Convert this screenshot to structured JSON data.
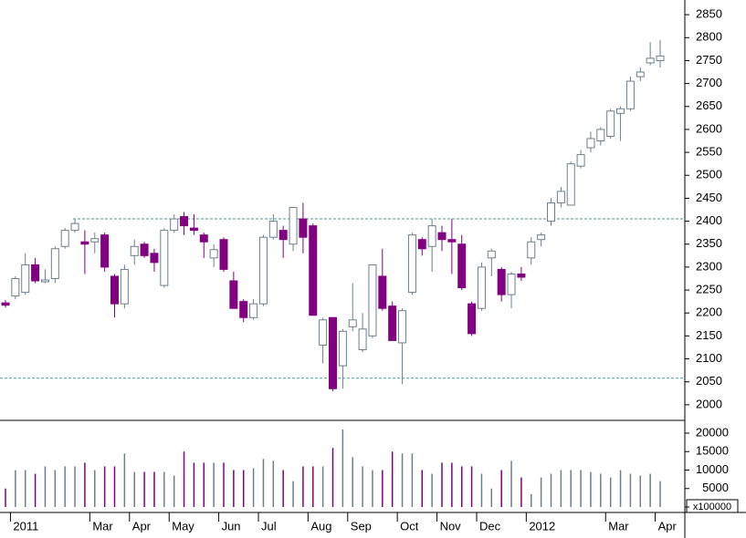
{
  "chart_data": {
    "type": "candlestick",
    "up_color": "#6b7f8c",
    "down_color": "#800080",
    "ylim": [
      1966,
      2882
    ],
    "yticks": [
      2000,
      2050,
      2100,
      2150,
      2200,
      2250,
      2300,
      2350,
      2400,
      2450,
      2500,
      2550,
      2600,
      2650,
      2700,
      2750,
      2800,
      2850
    ],
    "reference_lines": [
      2405,
      2058
    ],
    "categories": [
      null,
      "2011",
      null,
      null,
      null,
      null,
      null,
      null,
      null,
      "Mar",
      null,
      null,
      null,
      "Apr",
      null,
      null,
      null,
      "May",
      null,
      null,
      null,
      null,
      "Jun",
      null,
      null,
      null,
      "Jul",
      null,
      null,
      null,
      null,
      "Aug",
      null,
      null,
      null,
      "Sep",
      null,
      null,
      null,
      null,
      "Oct",
      null,
      null,
      null,
      "Nov",
      null,
      null,
      null,
      "Dec",
      null,
      null,
      null,
      null,
      "2012",
      null,
      null,
      null,
      null,
      null,
      null,
      null,
      "Mar",
      null,
      null,
      null,
      null,
      "Apr"
    ],
    "candles": [
      {
        "o": 2222,
        "h": 2228,
        "l": 2212,
        "c": 2217
      },
      {
        "o": 2237,
        "h": 2280,
        "l": 2230,
        "c": 2275
      },
      {
        "o": 2245,
        "h": 2330,
        "l": 2240,
        "c": 2305
      },
      {
        "o": 2305,
        "h": 2320,
        "l": 2265,
        "c": 2270
      },
      {
        "o": 2268,
        "h": 2295,
        "l": 2265,
        "c": 2272
      },
      {
        "o": 2275,
        "h": 2345,
        "l": 2265,
        "c": 2340
      },
      {
        "o": 2345,
        "h": 2385,
        "l": 2340,
        "c": 2380
      },
      {
        "o": 2380,
        "h": 2405,
        "l": 2375,
        "c": 2395
      },
      {
        "o": 2355,
        "h": 2380,
        "l": 2285,
        "c": 2350
      },
      {
        "o": 2355,
        "h": 2375,
        "l": 2330,
        "c": 2362
      },
      {
        "o": 2370,
        "h": 2375,
        "l": 2290,
        "c": 2300
      },
      {
        "o": 2280,
        "h": 2285,
        "l": 2190,
        "c": 2220
      },
      {
        "o": 2220,
        "h": 2305,
        "l": 2210,
        "c": 2295
      },
      {
        "o": 2325,
        "h": 2360,
        "l": 2305,
        "c": 2345
      },
      {
        "o": 2350,
        "h": 2355,
        "l": 2320,
        "c": 2325
      },
      {
        "o": 2330,
        "h": 2340,
        "l": 2290,
        "c": 2310
      },
      {
        "o": 2260,
        "h": 2385,
        "l": 2255,
        "c": 2380
      },
      {
        "o": 2380,
        "h": 2415,
        "l": 2375,
        "c": 2405
      },
      {
        "o": 2410,
        "h": 2420,
        "l": 2370,
        "c": 2390
      },
      {
        "o": 2385,
        "h": 2415,
        "l": 2370,
        "c": 2380
      },
      {
        "o": 2370,
        "h": 2375,
        "l": 2320,
        "c": 2355
      },
      {
        "o": 2320,
        "h": 2350,
        "l": 2300,
        "c": 2338
      },
      {
        "o": 2360,
        "h": 2365,
        "l": 2290,
        "c": 2295
      },
      {
        "o": 2270,
        "h": 2290,
        "l": 2210,
        "c": 2210
      },
      {
        "o": 2225,
        "h": 2230,
        "l": 2180,
        "c": 2190
      },
      {
        "o": 2190,
        "h": 2230,
        "l": 2185,
        "c": 2220
      },
      {
        "o": 2220,
        "h": 2370,
        "l": 2215,
        "c": 2365
      },
      {
        "o": 2365,
        "h": 2415,
        "l": 2360,
        "c": 2400
      },
      {
        "o": 2380,
        "h": 2390,
        "l": 2320,
        "c": 2360
      },
      {
        "o": 2350,
        "h": 2430,
        "l": 2335,
        "c": 2430
      },
      {
        "o": 2405,
        "h": 2440,
        "l": 2330,
        "c": 2365
      },
      {
        "o": 2390,
        "h": 2395,
        "l": 2195,
        "c": 2195
      },
      {
        "o": 2130,
        "h": 2190,
        "l": 2090,
        "c": 2185
      },
      {
        "o": 2190,
        "h": 2190,
        "l": 2030,
        "c": 2035
      },
      {
        "o": 2085,
        "h": 2165,
        "l": 2035,
        "c": 2160
      },
      {
        "o": 2170,
        "h": 2265,
        "l": 2160,
        "c": 2185
      },
      {
        "o": 2120,
        "h": 2200,
        "l": 2115,
        "c": 2165
      },
      {
        "o": 2150,
        "h": 2305,
        "l": 2145,
        "c": 2305
      },
      {
        "o": 2280,
        "h": 2340,
        "l": 2205,
        "c": 2210
      },
      {
        "o": 2215,
        "h": 2225,
        "l": 2140,
        "c": 2140
      },
      {
        "o": 2135,
        "h": 2210,
        "l": 2045,
        "c": 2205
      },
      {
        "o": 2245,
        "h": 2375,
        "l": 2240,
        "c": 2370
      },
      {
        "o": 2360,
        "h": 2365,
        "l": 2325,
        "c": 2340
      },
      {
        "o": 2345,
        "h": 2405,
        "l": 2290,
        "c": 2390
      },
      {
        "o": 2375,
        "h": 2390,
        "l": 2335,
        "c": 2360
      },
      {
        "o": 2360,
        "h": 2405,
        "l": 2285,
        "c": 2355
      },
      {
        "o": 2350,
        "h": 2370,
        "l": 2250,
        "c": 2255
      },
      {
        "o": 2220,
        "h": 2225,
        "l": 2150,
        "c": 2155
      },
      {
        "o": 2210,
        "h": 2310,
        "l": 2205,
        "c": 2300
      },
      {
        "o": 2320,
        "h": 2340,
        "l": 2280,
        "c": 2335
      },
      {
        "o": 2295,
        "h": 2300,
        "l": 2225,
        "c": 2240
      },
      {
        "o": 2240,
        "h": 2290,
        "l": 2210,
        "c": 2285
      },
      {
        "o": 2285,
        "h": 2300,
        "l": 2270,
        "c": 2278
      },
      {
        "o": 2320,
        "h": 2365,
        "l": 2305,
        "c": 2355
      },
      {
        "o": 2360,
        "h": 2375,
        "l": 2345,
        "c": 2370
      },
      {
        "o": 2400,
        "h": 2450,
        "l": 2390,
        "c": 2440
      },
      {
        "o": 2440,
        "h": 2475,
        "l": 2430,
        "c": 2465
      },
      {
        "o": 2435,
        "h": 2530,
        "l": 2435,
        "c": 2525
      },
      {
        "o": 2520,
        "h": 2555,
        "l": 2515,
        "c": 2545
      },
      {
        "o": 2560,
        "h": 2595,
        "l": 2550,
        "c": 2580
      },
      {
        "o": 2575,
        "h": 2605,
        "l": 2565,
        "c": 2600
      },
      {
        "o": 2585,
        "h": 2645,
        "l": 2580,
        "c": 2640
      },
      {
        "o": 2635,
        "h": 2650,
        "l": 2575,
        "c": 2645
      },
      {
        "o": 2645,
        "h": 2715,
        "l": 2640,
        "c": 2705
      },
      {
        "o": 2715,
        "h": 2735,
        "l": 2705,
        "c": 2725
      },
      {
        "o": 2745,
        "h": 2790,
        "l": 2740,
        "c": 2755
      },
      {
        "o": 2750,
        "h": 2795,
        "l": 2735,
        "c": 2760
      }
    ],
    "volume": {
      "values": [
        5000,
        10000,
        10000,
        9000,
        11000,
        10000,
        11000,
        11000,
        12000,
        10000,
        11000,
        11000,
        14500,
        9500,
        9500,
        9500,
        9500,
        8500,
        15000,
        12000,
        12000,
        12000,
        12000,
        10000,
        10000,
        10500,
        13000,
        12500,
        10000,
        7000,
        11000,
        11000,
        11000,
        16000,
        21000,
        13500,
        11000,
        10000,
        10000,
        15000,
        14500,
        14500,
        10000,
        9000,
        12000,
        12000,
        11000,
        11000,
        9000,
        5000,
        10000,
        12500,
        8000,
        3500,
        8000,
        9000,
        10000,
        10000,
        10000,
        9500,
        9000,
        8000,
        10000,
        9000,
        8500,
        9000,
        7000
      ],
      "ylim": [
        -1480,
        23460
      ],
      "yticks": [
        0,
        5000,
        10000,
        15000,
        20000
      ],
      "unit_label": "x100000"
    }
  }
}
